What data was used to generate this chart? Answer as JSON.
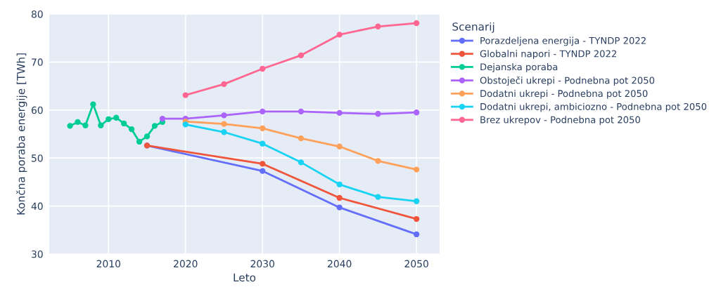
{
  "chart_data": {
    "type": "line",
    "xlabel": "Leto",
    "ylabel": "Končna poraba energije [TWh]",
    "legend_title": "Scenarij",
    "legend": "right",
    "grid": true,
    "marker": "circle",
    "line_style": "solid",
    "xlim": [
      2002.3,
      2053
    ],
    "xticks": [
      2010,
      2020,
      2030,
      2040,
      2050
    ],
    "ylim": [
      30,
      80
    ],
    "yticks": [
      30,
      40,
      50,
      60,
      70,
      80
    ],
    "series": [
      {
        "name": "Porazdeljena energija - TYNDP 2022",
        "color": "#636efa",
        "x": [
          2015,
          2030,
          2040,
          2050
        ],
        "values": [
          52.6,
          47.3,
          39.7,
          34.1
        ]
      },
      {
        "name": "Globalni napori - TYNDP 2022",
        "color": "#ef553b",
        "x": [
          2015,
          2030,
          2040,
          2050
        ],
        "values": [
          52.6,
          48.8,
          41.7,
          37.3
        ]
      },
      {
        "name": "Dejanska poraba",
        "color": "#00cc96",
        "x": [
          2005,
          2006,
          2007,
          2008,
          2009,
          2010,
          2011,
          2012,
          2013,
          2014,
          2015,
          2016,
          2017
        ],
        "values": [
          56.7,
          57.5,
          56.8,
          61.2,
          56.8,
          58.1,
          58.4,
          57.2,
          56.0,
          53.4,
          54.5,
          56.7,
          57.5
        ]
      },
      {
        "name": "Obstoječi ukrepi - Podnebna pot 2050",
        "color": "#ab63fa",
        "x": [
          2017,
          2020,
          2025,
          2030,
          2035,
          2040,
          2045,
          2050
        ],
        "values": [
          58.2,
          58.2,
          58.9,
          59.7,
          59.7,
          59.4,
          59.2,
          59.5
        ]
      },
      {
        "name": "Dodatni ukrepi - Podnebna pot 2050",
        "color": "#ffa15a",
        "x": [
          2020,
          2025,
          2030,
          2035,
          2040,
          2045,
          2050
        ],
        "values": [
          57.6,
          57.1,
          56.2,
          54.1,
          52.4,
          49.4,
          47.6
        ]
      },
      {
        "name": "Dodatni ukrepi, ambiciozno - Podnebna pot 2050",
        "color": "#19d3f3",
        "x": [
          2020,
          2025,
          2030,
          2035,
          2040,
          2045,
          2050
        ],
        "values": [
          57.0,
          55.4,
          53.0,
          49.1,
          44.5,
          41.9,
          41.0
        ]
      },
      {
        "name": "Brez ukrepov - Podnebna pot 2050",
        "color": "#ff6692",
        "x": [
          2020,
          2025,
          2030,
          2035,
          2040,
          2045,
          2050
        ],
        "values": [
          63.1,
          65.4,
          68.6,
          71.4,
          75.7,
          77.4,
          78.1
        ]
      }
    ]
  }
}
